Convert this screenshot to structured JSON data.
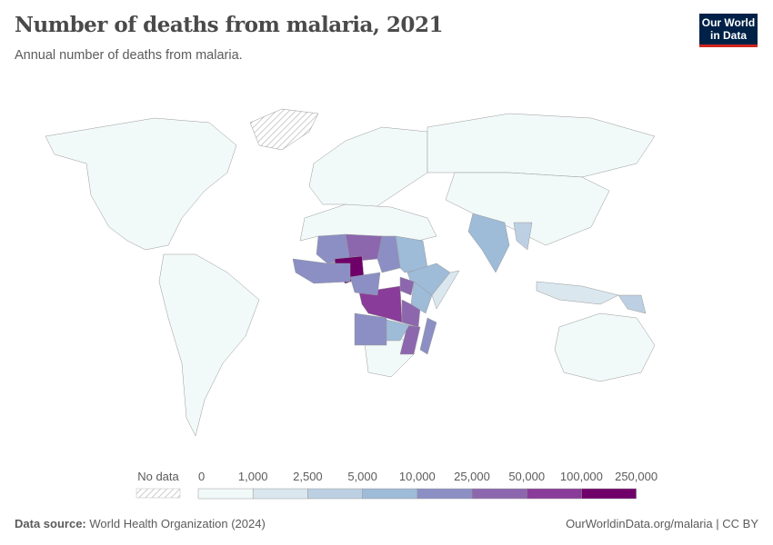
{
  "title": "Number of deaths from malaria, 2021",
  "subtitle": "Annual number of deaths from malaria.",
  "logo": {
    "line1": "Our World",
    "line2": "in Data"
  },
  "legend": {
    "no_data": "No data",
    "bins": [
      "0",
      "1,000",
      "2,500",
      "5,000",
      "10,000",
      "25,000",
      "50,000",
      "100,000",
      "250,000"
    ],
    "colors": [
      "#f2f9f9",
      "#dae7ef",
      "#bdd0e3",
      "#9ebbd8",
      "#8b8fc4",
      "#8c67ae",
      "#893c99",
      "#6f006a"
    ],
    "no_data_color": "#e0e0e0"
  },
  "map_regions": [
    {
      "name": "North America",
      "bin": 0
    },
    {
      "name": "South America",
      "bin": 0
    },
    {
      "name": "Europe",
      "bin": 0
    },
    {
      "name": "Russia",
      "bin": 0
    },
    {
      "name": "China",
      "bin": 0
    },
    {
      "name": "Australia",
      "bin": 0
    },
    {
      "name": "Greenland",
      "bin": -1
    },
    {
      "name": "North Africa",
      "bin": 0
    },
    {
      "name": "Southern Africa",
      "bin": 0
    },
    {
      "name": "India",
      "bin": 3
    },
    {
      "name": "Indonesia",
      "bin": 1
    },
    {
      "name": "Papua New Guinea",
      "bin": 2
    },
    {
      "name": "Myanmar",
      "bin": 2
    },
    {
      "name": "Mali",
      "bin": 4
    },
    {
      "name": "Niger",
      "bin": 5
    },
    {
      "name": "Burkina Faso",
      "bin": 4
    },
    {
      "name": "Nigeria",
      "bin": 7
    },
    {
      "name": "Sudan",
      "bin": 3
    },
    {
      "name": "Ethiopia",
      "bin": 3
    },
    {
      "name": "Chad",
      "bin": 4
    },
    {
      "name": "DR Congo",
      "bin": 6
    },
    {
      "name": "Tanzania",
      "bin": 5
    },
    {
      "name": "Uganda",
      "bin": 5
    },
    {
      "name": "Angola",
      "bin": 4
    },
    {
      "name": "Mozambique",
      "bin": 5
    },
    {
      "name": "Madagascar",
      "bin": 4
    },
    {
      "name": "Zambia",
      "bin": 3
    },
    {
      "name": "Cameroon",
      "bin": 4
    },
    {
      "name": "Kenya",
      "bin": 3
    },
    {
      "name": "Somalia",
      "bin": 1
    },
    {
      "name": "Guinea & Coastal West Africa",
      "bin": 4
    }
  ],
  "footer": {
    "source_label": "Data source:",
    "source": "World Health Organization (2024)",
    "right": "OurWorldinData.org/malaria | CC BY"
  }
}
